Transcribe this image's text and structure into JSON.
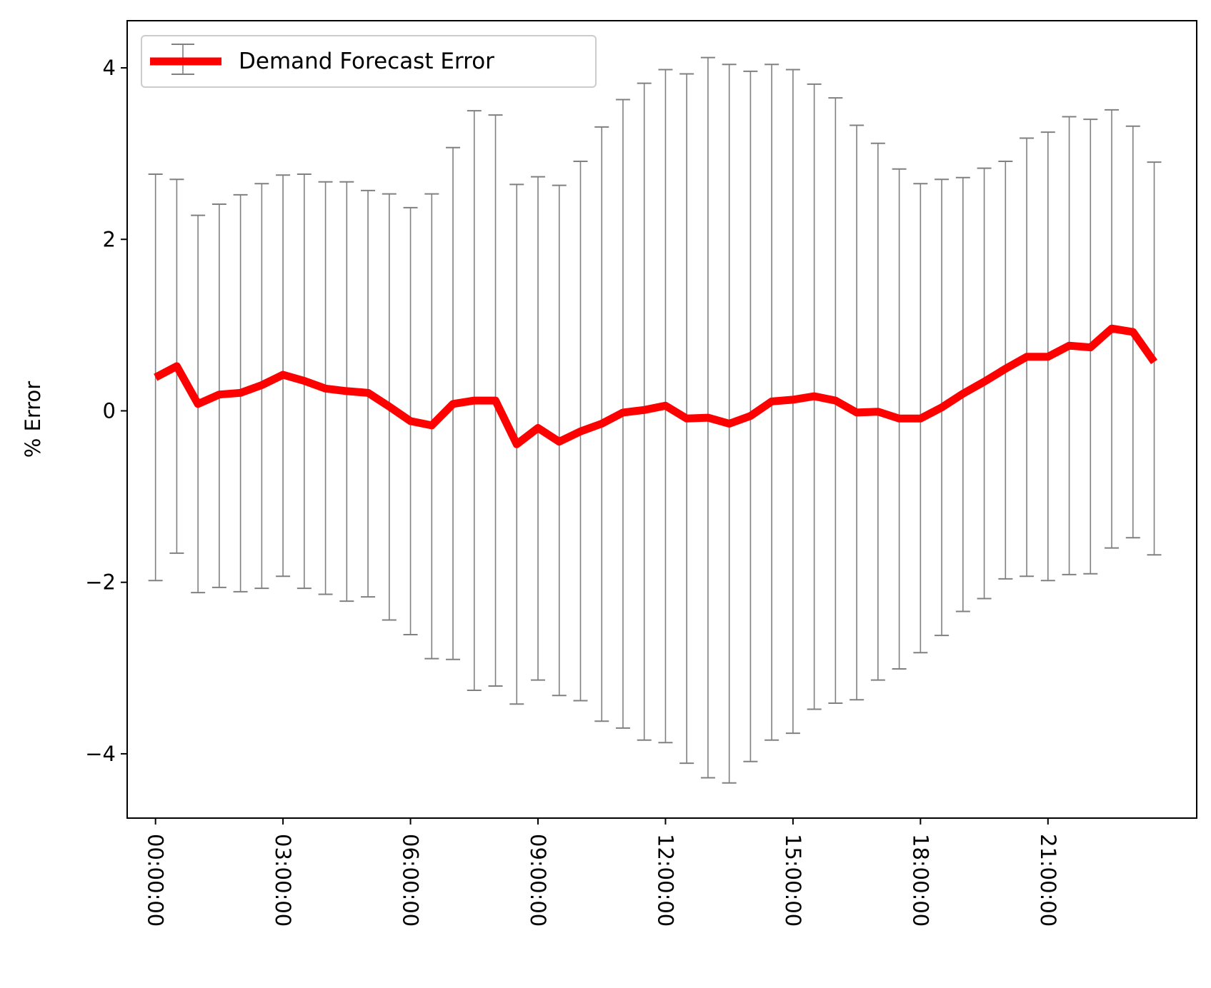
{
  "chart_data": {
    "type": "line",
    "title": "",
    "xlabel": "",
    "ylabel": "% Error",
    "ylim": [
      -4.75,
      4.55
    ],
    "xlim": [
      "-00:40",
      "24:30"
    ],
    "yticks": [
      4,
      2,
      0,
      -2,
      -4
    ],
    "ytick_labels": [
      "4",
      "2",
      "0",
      "−2",
      "−4"
    ],
    "xticks": [
      "00:00:00",
      "03:00:00",
      "06:00:00",
      "09:00:00",
      "12:00:00",
      "15:00:00",
      "18:00:00",
      "21:00:00"
    ],
    "grid": false,
    "legend": {
      "position": "top-left",
      "entries": [
        "Demand Forecast Error"
      ]
    },
    "colors": {
      "line": "#ff0000",
      "errorbar": "#808080"
    },
    "series": [
      {
        "name": "Demand Forecast Error",
        "x": [
          "00:00",
          "00:30",
          "01:00",
          "01:30",
          "02:00",
          "02:30",
          "03:00",
          "03:30",
          "04:00",
          "04:30",
          "05:00",
          "05:30",
          "06:00",
          "06:30",
          "07:00",
          "07:30",
          "08:00",
          "08:30",
          "09:00",
          "09:30",
          "10:00",
          "10:30",
          "11:00",
          "11:30",
          "12:00",
          "12:30",
          "13:00",
          "13:30",
          "14:00",
          "14:30",
          "15:00",
          "15:30",
          "16:00",
          "16:30",
          "17:00",
          "17:30",
          "18:00",
          "18:30",
          "19:00",
          "19:30",
          "20:00",
          "20:30",
          "21:00",
          "21:30",
          "22:00",
          "22:30",
          "23:00",
          "23:30"
        ],
        "y": [
          0.39,
          0.52,
          0.08,
          0.19,
          0.21,
          0.3,
          0.42,
          0.35,
          0.26,
          0.23,
          0.21,
          0.05,
          -0.12,
          -0.17,
          0.08,
          0.12,
          0.12,
          -0.39,
          -0.2,
          -0.36,
          -0.24,
          -0.15,
          -0.02,
          0.01,
          0.06,
          -0.09,
          -0.08,
          -0.15,
          -0.06,
          0.11,
          0.13,
          0.17,
          0.12,
          -0.02,
          -0.01,
          -0.09,
          -0.09,
          0.04,
          0.2,
          0.34,
          0.49,
          0.63,
          0.63,
          0.76,
          0.74,
          0.96,
          0.92,
          0.57
        ],
        "y_upper": [
          2.76,
          2.7,
          2.28,
          2.41,
          2.52,
          2.65,
          2.75,
          2.76,
          2.67,
          2.67,
          2.57,
          2.53,
          2.37,
          2.53,
          3.07,
          3.5,
          3.45,
          2.64,
          2.73,
          2.63,
          2.91,
          3.31,
          3.63,
          3.82,
          3.98,
          3.93,
          4.12,
          4.04,
          3.96,
          4.04,
          3.98,
          3.81,
          3.65,
          3.33,
          3.12,
          2.82,
          2.65,
          2.7,
          2.72,
          2.83,
          2.91,
          3.18,
          3.25,
          3.43,
          3.4,
          3.51,
          3.32,
          2.9
        ],
        "y_lower": [
          -1.98,
          -1.66,
          -2.12,
          -2.06,
          -2.11,
          -2.07,
          -1.93,
          -2.07,
          -2.14,
          -2.22,
          -2.17,
          -2.44,
          -2.61,
          -2.89,
          -2.9,
          -3.26,
          -3.21,
          -3.42,
          -3.14,
          -3.32,
          -3.38,
          -3.62,
          -3.7,
          -3.84,
          -3.87,
          -4.11,
          -4.28,
          -4.34,
          -4.09,
          -3.84,
          -3.76,
          -3.48,
          -3.41,
          -3.37,
          -3.14,
          -3.01,
          -2.82,
          -2.62,
          -2.34,
          -2.19,
          -1.96,
          -1.93,
          -1.98,
          -1.91,
          -1.9,
          -1.6,
          -1.48,
          -1.68
        ]
      }
    ]
  }
}
